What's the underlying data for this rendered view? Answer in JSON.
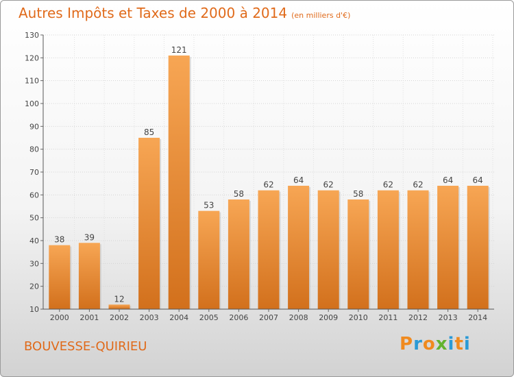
{
  "header": {
    "title": "Autres Impôts et Taxes de 2000 à 2014",
    "unit": "(en milliers d'€)"
  },
  "footer": {
    "commune": "BOUVESSE-QUIRIEU",
    "logo_text": "Proxiti"
  },
  "colors": {
    "title": "#e06a1a",
    "bar_light": "#f7a654",
    "bar_dark": "#d2701c",
    "logo": [
      "#f08a1e",
      "#2a9ad6",
      "#f08a1e",
      "#63b32e",
      "#2a9ad6",
      "#f08a1e",
      "#2a9ad6"
    ]
  },
  "chart_data": {
    "type": "bar",
    "title": "Autres Impôts et Taxes de 2000 à 2014",
    "categories": [
      "2000",
      "2001",
      "2002",
      "2003",
      "2004",
      "2005",
      "2006",
      "2007",
      "2008",
      "2009",
      "2010",
      "2011",
      "2012",
      "2013",
      "2014"
    ],
    "values": [
      38,
      39,
      12,
      85,
      121,
      53,
      58,
      62,
      64,
      62,
      58,
      62,
      62,
      64,
      64
    ],
    "ylim": [
      10,
      130
    ],
    "yticks": [
      10,
      20,
      30,
      40,
      50,
      60,
      70,
      80,
      90,
      100,
      110,
      120,
      130
    ],
    "grid": true,
    "legend": "none"
  }
}
